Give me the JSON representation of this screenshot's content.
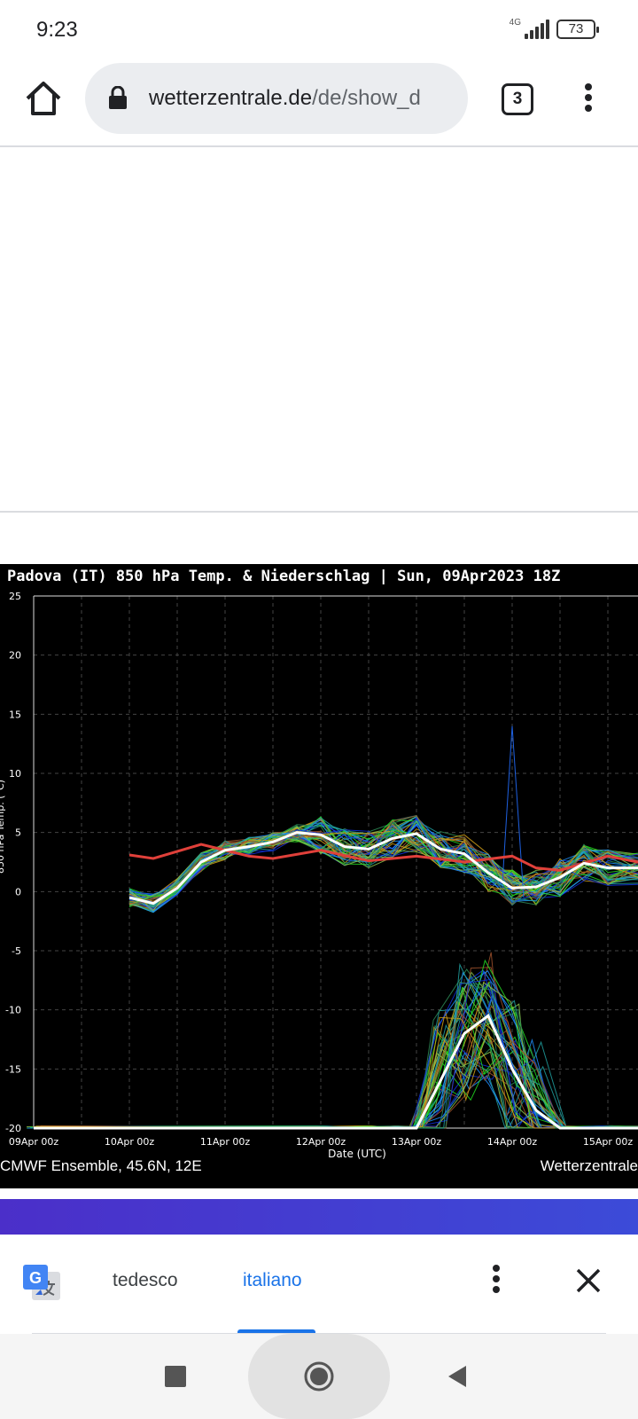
{
  "status_bar": {
    "time": "9:23",
    "network": "4G",
    "battery": "73"
  },
  "browser": {
    "url_domain": "wetterzentrale.de",
    "url_path": "/de/show_d",
    "tab_count": "3"
  },
  "chart": {
    "title": "Padova  (IT)  850 hPa Temp. & Niederschlag | Sun, 09Apr2023 18Z",
    "footer_left": "CMWF Ensemble, 45.6N, 12E",
    "footer_right": "Wetterzentrale",
    "ylabel": "850 hPa Temp. (°C)",
    "xlabel": "Date (UTC)"
  },
  "chart_data": {
    "type": "line",
    "ylim": [
      -20,
      25
    ],
    "yticks": [
      "25",
      "20",
      "15",
      "10",
      "5",
      "0",
      "-5",
      "-10",
      "-15",
      "-20"
    ],
    "xlim": [
      0,
      6.5
    ],
    "xticks": [
      {
        "x": 0,
        "label": "09Apr 00z"
      },
      {
        "x": 1,
        "label": "10Apr 00z"
      },
      {
        "x": 2,
        "label": "11Apr 00z"
      },
      {
        "x": 3,
        "label": "12Apr 00z"
      },
      {
        "x": 4,
        "label": "13Apr 00z"
      },
      {
        "x": 5,
        "label": "14Apr 00z"
      },
      {
        "x": 6,
        "label": "15Apr 00z"
      }
    ],
    "grid": true,
    "colors": {
      "mean": "#ffffff",
      "climate": "#e0403a",
      "members": [
        "#22dd22",
        "#1e90ff",
        "#1030e0",
        "#d4a017",
        "#20a0a0",
        "#8bc34a",
        "#a0522d",
        "#2e8b57"
      ]
    },
    "series": [
      {
        "name": "",
        "role": "climate",
        "x": [
          1,
          1.25,
          1.75,
          2.25,
          2.5,
          3,
          3.5,
          4,
          4.5,
          5,
          5.25,
          5.5,
          6,
          6.5
        ],
        "y": [
          3.1,
          2.8,
          4.0,
          3.0,
          2.8,
          3.5,
          2.6,
          3.0,
          2.5,
          3.0,
          2.0,
          1.8,
          3.0,
          2.2
        ]
      },
      {
        "name": "",
        "role": "mean",
        "x": [
          1,
          1.25,
          1.5,
          1.75,
          2,
          2.25,
          2.5,
          2.75,
          3,
          3.25,
          3.5,
          3.75,
          4,
          4.25,
          4.5,
          4.75,
          5,
          5.25,
          5.5,
          5.75,
          6,
          6.5
        ],
        "y": [
          -0.5,
          -1.0,
          0.3,
          2.5,
          3.5,
          3.8,
          4.2,
          5.0,
          4.8,
          3.8,
          3.6,
          4.5,
          4.9,
          3.6,
          3.2,
          1.6,
          0.3,
          0.4,
          1.2,
          2.4,
          2.0,
          2.0
        ]
      },
      {
        "name": "",
        "role": "mean",
        "x": [
          0,
          3,
          3.5,
          3.75,
          4,
          4.25,
          4.5,
          4.75,
          5,
          5.25,
          5.5,
          6,
          6.5
        ],
        "y": [
          -20,
          -20,
          -20,
          -20,
          -20,
          -16,
          -12,
          -10.5,
          -15,
          -18.5,
          -20,
          -20,
          -20
        ]
      }
    ]
  },
  "translate": {
    "source_lang": "tedesco",
    "target_lang": "italiano"
  }
}
